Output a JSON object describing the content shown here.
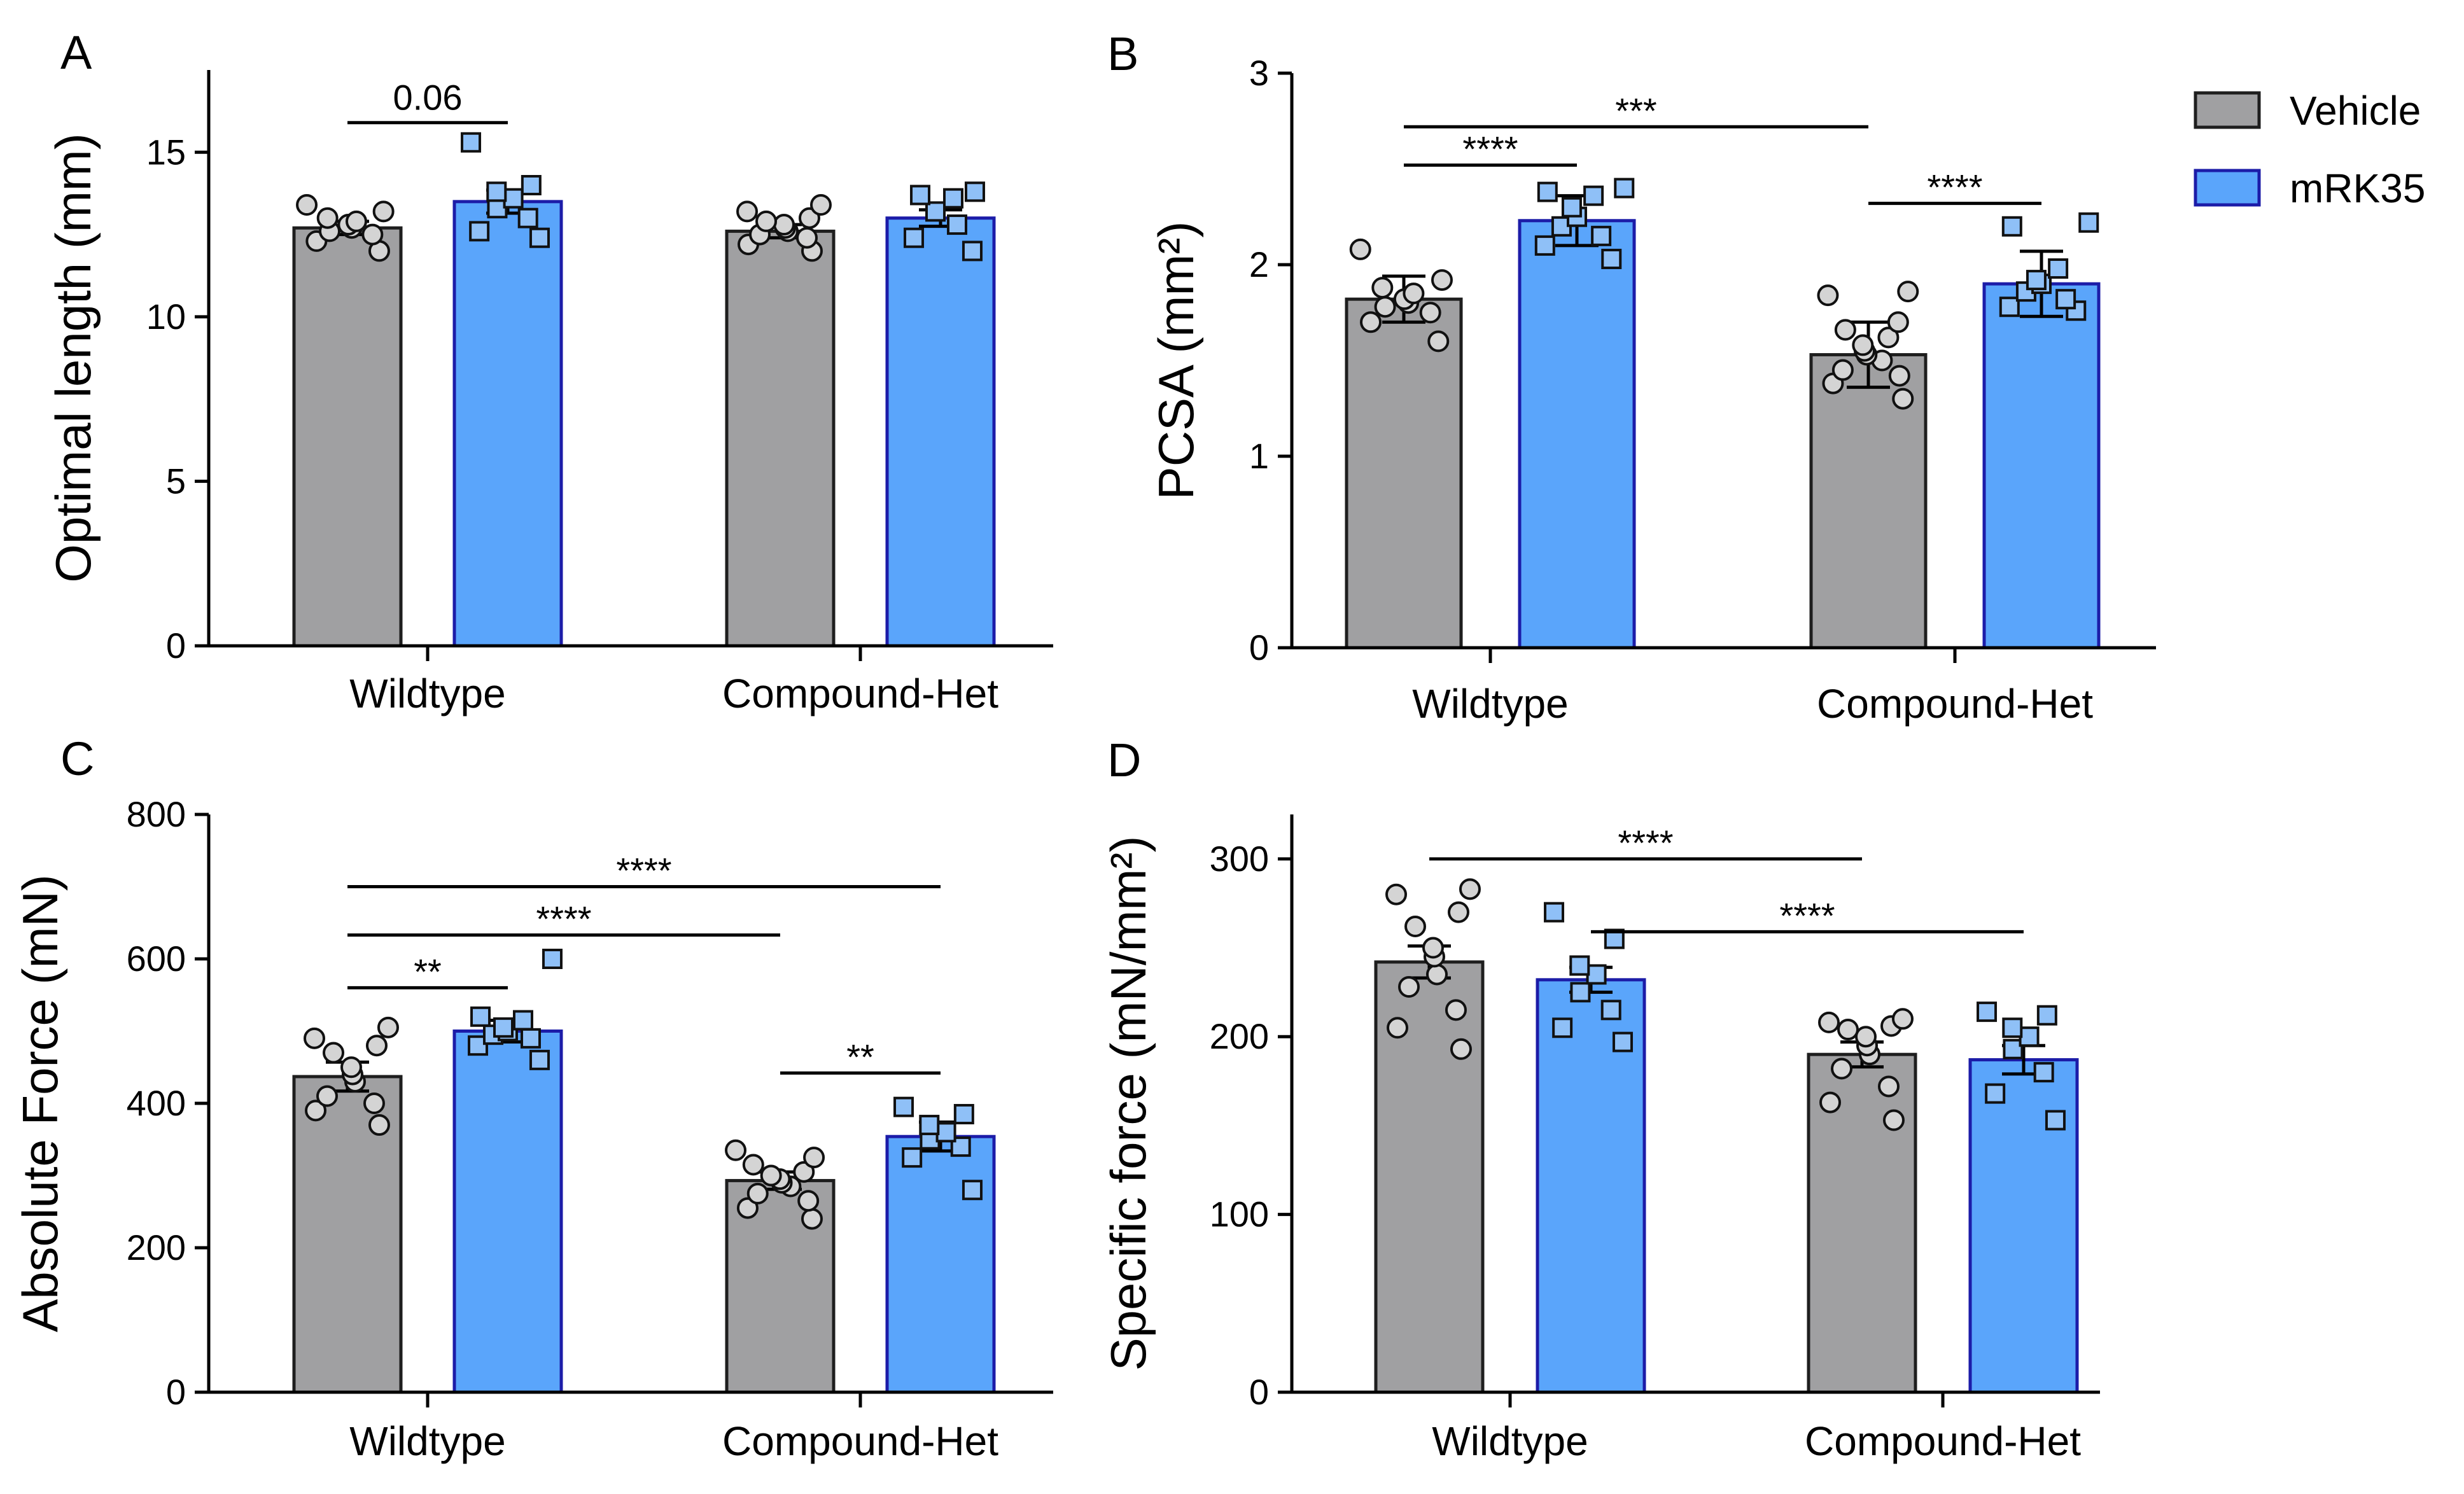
{
  "legend": {
    "items": [
      {
        "label": "Vehicle",
        "color": "#a0a0a2",
        "edge": "#1e1e1e"
      },
      {
        "label": "mRK35",
        "color": "#5aa5fb",
        "edge": "#1c1ca8"
      }
    ]
  },
  "chart_data": [
    {
      "panel": "A",
      "type": "bar",
      "categories": [
        "Wildtype",
        "Compound-Het"
      ],
      "ylabel": "Optimal length (mm)",
      "ylim": [
        0,
        17.5
      ],
      "yticks": [
        0,
        5,
        10,
        15
      ],
      "series": [
        {
          "name": "Vehicle",
          "marker": "circle",
          "values": [
            12.7,
            12.6
          ],
          "sem": [
            0.2,
            0.2
          ],
          "points": [
            [
              12.0,
              12.3,
              12.5,
              12.6,
              12.7,
              12.8,
              12.9,
              13.0,
              13.2,
              13.4
            ],
            [
              12.0,
              12.2,
              12.4,
              12.5,
              12.6,
              12.7,
              12.8,
              12.9,
              13.0,
              13.2,
              13.4
            ]
          ]
        },
        {
          "name": "mRK35",
          "marker": "square",
          "values": [
            13.5,
            13.0
          ],
          "sem": [
            0.35,
            0.25
          ],
          "points": [
            [
              12.4,
              12.6,
              13.0,
              13.3,
              13.6,
              13.8,
              14.0,
              15.3
            ],
            [
              12.0,
              12.4,
              12.8,
              13.2,
              13.6,
              13.7,
              13.8
            ]
          ]
        }
      ],
      "significance": [
        {
          "label": "0.06",
          "from": [
            0,
            0
          ],
          "to": [
            0,
            1
          ],
          "level": 15.9
        }
      ]
    },
    {
      "panel": "B",
      "type": "bar",
      "categories": [
        "Wildtype",
        "Compound-Het"
      ],
      "ylabel": "PCSA (mm²)",
      "ylim": [
        0,
        3
      ],
      "yticks": [
        0,
        1,
        2,
        3
      ],
      "series": [
        {
          "name": "Vehicle",
          "marker": "circle",
          "values": [
            1.82,
            1.53
          ],
          "sem": [
            0.12,
            0.17
          ],
          "points": [
            [
              1.6,
              1.7,
              1.75,
              1.78,
              1.8,
              1.82,
              1.85,
              1.88,
              1.92,
              2.08
            ],
            [
              1.3,
              1.38,
              1.42,
              1.45,
              1.5,
              1.53,
              1.55,
              1.58,
              1.62,
              1.66,
              1.7,
              1.84,
              1.86
            ]
          ]
        },
        {
          "name": "mRK35",
          "marker": "square",
          "values": [
            2.23,
            1.9
          ],
          "sem": [
            0.13,
            0.17
          ],
          "points": [
            [
              2.03,
              2.1,
              2.15,
              2.2,
              2.25,
              2.3,
              2.36,
              2.38,
              2.4
            ],
            [
              1.76,
              1.78,
              1.82,
              1.86,
              1.9,
              1.92,
              1.98,
              2.2,
              2.22
            ]
          ]
        }
      ],
      "significance": [
        {
          "label": "***",
          "from": [
            0,
            0
          ],
          "to": [
            1,
            0
          ],
          "level": 2.72
        },
        {
          "label": "****",
          "from": [
            0,
            0
          ],
          "to": [
            0,
            1
          ],
          "level": 2.52
        },
        {
          "label": "****",
          "from": [
            1,
            0
          ],
          "to": [
            1,
            1
          ],
          "level": 2.32
        }
      ]
    },
    {
      "panel": "C",
      "type": "bar",
      "categories": [
        "Wildtype",
        "Compound-Het"
      ],
      "ylabel": "Absolute Force (mN)",
      "ylim": [
        0,
        800
      ],
      "yticks": [
        0,
        200,
        400,
        600,
        800
      ],
      "series": [
        {
          "name": "Vehicle",
          "marker": "circle",
          "values": [
            437,
            293
          ],
          "sem": [
            20,
            12
          ],
          "points": [
            [
              370,
              390,
              400,
              410,
              430,
              440,
              450,
              470,
              480,
              490,
              505
            ],
            [
              240,
              255,
              265,
              275,
              285,
              290,
              295,
              300,
              305,
              315,
              325,
              335
            ]
          ]
        },
        {
          "name": "mRK35",
          "marker": "square",
          "values": [
            500,
            354
          ],
          "sem": [
            15,
            20
          ],
          "points": [
            [
              460,
              480,
              490,
              495,
              500,
              505,
              515,
              520,
              600
            ],
            [
              280,
              325,
              340,
              350,
              360,
              370,
              385,
              395
            ]
          ]
        }
      ],
      "significance": [
        {
          "label": "****",
          "from": [
            0,
            0
          ],
          "to": [
            1,
            1
          ],
          "level": 700
        },
        {
          "label": "****",
          "from": [
            0,
            0
          ],
          "to": [
            1,
            0
          ],
          "level": 633
        },
        {
          "label": "**",
          "from": [
            0,
            0
          ],
          "to": [
            0,
            1
          ],
          "level": 560
        },
        {
          "label": "**",
          "from": [
            1,
            0
          ],
          "to": [
            1,
            1
          ],
          "level": 442
        }
      ]
    },
    {
      "panel": "D",
      "type": "bar",
      "categories": [
        "Wildtype",
        "Compound-Het"
      ],
      "ylabel": "Specific force (mN/mm²)",
      "ylim": [
        0,
        325
      ],
      "yticks": [
        0,
        100,
        200,
        300
      ],
      "series": [
        {
          "name": "Vehicle",
          "marker": "circle",
          "values": [
            242,
            190
          ],
          "sem": [
            9,
            7
          ],
          "points": [
            [
              193,
              205,
              215,
              228,
              235,
              245,
              250,
              262,
              270,
              280,
              283
            ],
            [
              153,
              163,
              172,
              182,
              190,
              195,
              200,
              204,
              206,
              208,
              210
            ]
          ]
        },
        {
          "name": "mRK35",
          "marker": "square",
          "values": [
            232,
            187
          ],
          "sem": [
            7,
            8
          ],
          "points": [
            [
              197,
              205,
              215,
              225,
              235,
              240,
              255,
              270
            ],
            [
              153,
              168,
              180,
              193,
              200,
              205,
              212,
              214
            ]
          ]
        }
      ],
      "significance": [
        {
          "label": "****",
          "from": [
            0,
            0
          ],
          "to": [
            1,
            0
          ],
          "level": 300
        },
        {
          "label": "****",
          "from": [
            0,
            1
          ],
          "to": [
            1,
            1
          ],
          "level": 259
        }
      ]
    }
  ]
}
